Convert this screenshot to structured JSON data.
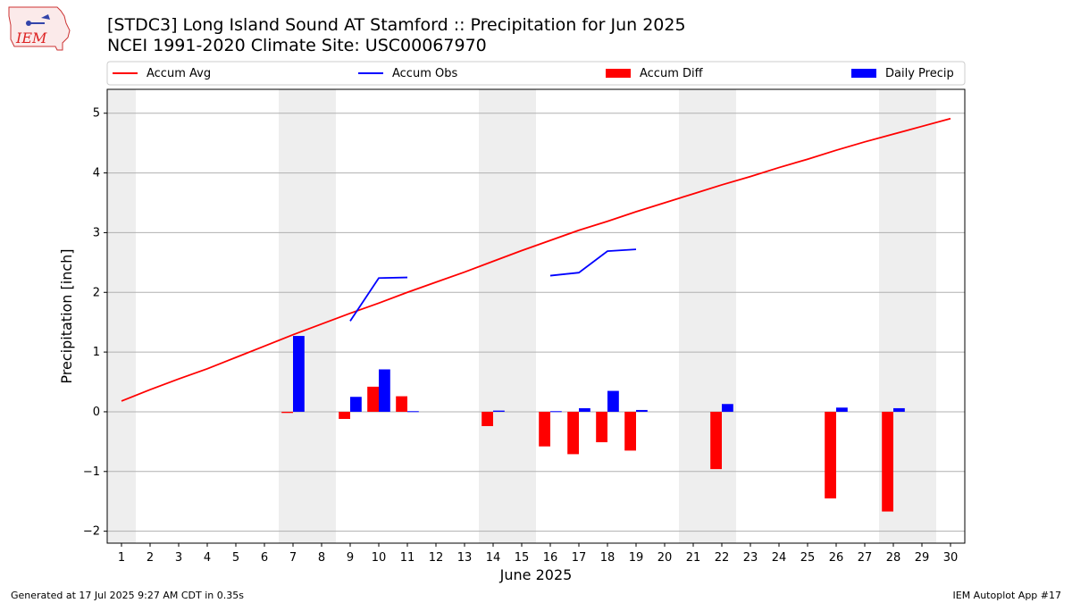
{
  "header": {
    "title_line1": "[STDC3] Long Island Sound  AT Stamford :: Precipitation for Jun 2025",
    "title_line2": "NCEI 1991-2020 Climate Site: USC00067970",
    "logo_text": "IEM"
  },
  "footer": {
    "generated": "Generated at 17 Jul 2025 9:27 AM CDT in 0.35s",
    "app": "IEM Autoplot App #17"
  },
  "chart_data": {
    "type": "bar",
    "title": "[STDC3] Long Island Sound  AT Stamford :: Precipitation for Jun 2025",
    "xlabel": "June 2025",
    "ylabel": "Precipitation [inch]",
    "xlim": [
      0.5,
      30.5
    ],
    "ylim": [
      -2.2,
      5.4
    ],
    "xticks": [
      1,
      2,
      3,
      4,
      5,
      6,
      7,
      8,
      9,
      10,
      11,
      12,
      13,
      14,
      15,
      16,
      17,
      18,
      19,
      20,
      21,
      22,
      23,
      24,
      25,
      26,
      27,
      28,
      29,
      30
    ],
    "yticks": [
      -2,
      -1,
      0,
      1,
      2,
      3,
      4,
      5
    ],
    "grid": "horizontal",
    "legend_position": "top",
    "weekend_shading": [
      [
        0.5,
        1.5
      ],
      [
        6.5,
        8.5
      ],
      [
        13.5,
        15.5
      ],
      [
        20.5,
        22.5
      ],
      [
        27.5,
        29.5
      ]
    ],
    "colors": {
      "accum_avg": "#ff0000",
      "accum_obs": "#0000ff",
      "accum_diff": "#ff0000",
      "daily_precip": "#0000ff",
      "weekend": "#eeeeee",
      "grid": "#b0b0b0"
    },
    "series": [
      {
        "name": "Accum Avg",
        "kind": "line",
        "x": [
          1,
          2,
          3,
          4,
          5,
          6,
          7,
          8,
          9,
          10,
          11,
          12,
          13,
          14,
          15,
          16,
          17,
          18,
          19,
          20,
          21,
          22,
          23,
          24,
          25,
          26,
          27,
          28,
          29,
          30
        ],
        "values": [
          0.18,
          0.37,
          0.55,
          0.72,
          0.91,
          1.1,
          1.29,
          1.47,
          1.65,
          1.82,
          2.0,
          2.17,
          2.34,
          2.52,
          2.7,
          2.87,
          3.04,
          3.19,
          3.35,
          3.5,
          3.65,
          3.8,
          3.94,
          4.09,
          4.23,
          4.38,
          4.52,
          4.65,
          4.78,
          4.91
        ]
      },
      {
        "name": "Accum Obs",
        "kind": "line",
        "segments": [
          {
            "x": [
              9,
              10,
              11
            ],
            "values": [
              1.52,
              2.24,
              2.25
            ]
          },
          {
            "x": [
              16,
              17,
              18,
              19
            ],
            "values": [
              2.28,
              2.33,
              2.69,
              2.72
            ]
          }
        ]
      },
      {
        "name": "Accum Diff",
        "kind": "bar",
        "x": [
          7,
          9,
          10,
          11,
          14,
          16,
          17,
          18,
          19,
          22,
          26,
          28
        ],
        "values": [
          -0.02,
          -0.12,
          0.42,
          0.26,
          -0.24,
          -0.58,
          -0.71,
          -0.51,
          -0.65,
          -0.96,
          -1.45,
          -1.67
        ]
      },
      {
        "name": "Daily Precip",
        "kind": "bar",
        "x": [
          7,
          9,
          10,
          11,
          14,
          16,
          17,
          18,
          19,
          22,
          26,
          28
        ],
        "values": [
          1.27,
          0.25,
          0.71,
          0.01,
          0.02,
          0.01,
          0.06,
          0.35,
          0.03,
          0.13,
          0.07,
          0.06
        ]
      }
    ]
  }
}
